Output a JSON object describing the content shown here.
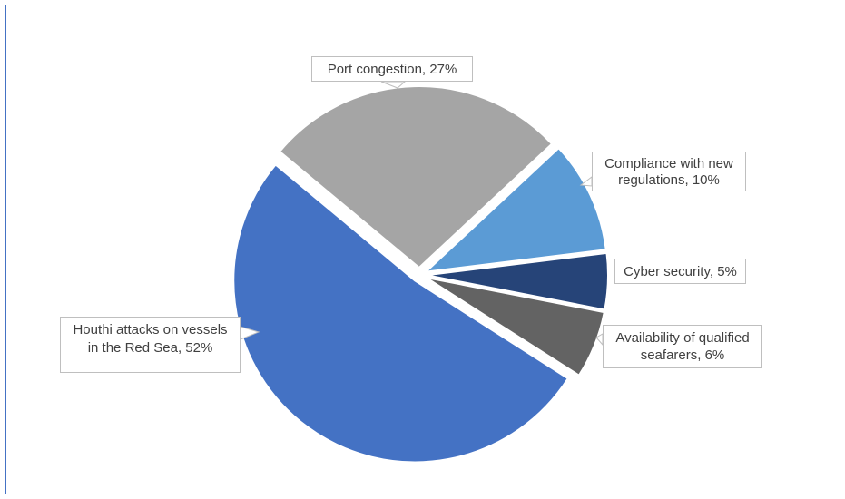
{
  "chart_data": {
    "type": "pie",
    "title": "",
    "slices": [
      {
        "label": "Houthi attacks on vessels in the Red Sea, 52%",
        "value": 52,
        "color": "#4472c4"
      },
      {
        "label": "Port congestion, 27%",
        "value": 27,
        "color": "#a5a5a5"
      },
      {
        "label": "Compliance with new regulations, 10%",
        "value": 10,
        "color": "#5b9bd5"
      },
      {
        "label": "Cyber security, 5%",
        "value": 5,
        "color": "#264478"
      },
      {
        "label": "Availability of qualified seafarers, 6%",
        "value": 6,
        "color": "#636363"
      }
    ],
    "exploded": true,
    "legend": "none"
  }
}
